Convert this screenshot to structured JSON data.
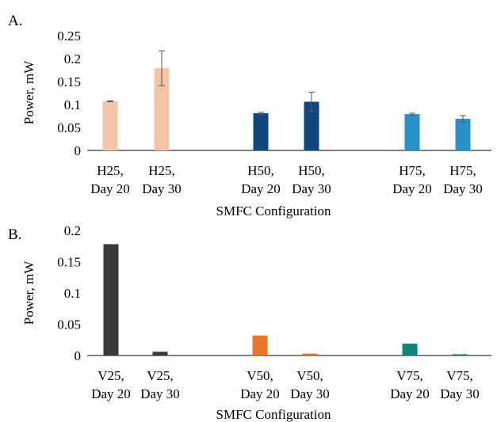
{
  "chart_data": [
    {
      "type": "bar",
      "panel_label": "A.",
      "categories": [
        [
          "H25,",
          "Day 20"
        ],
        [
          "H25,",
          "Day 30"
        ],
        [
          "H50,",
          "Day 20"
        ],
        [
          "H50,",
          "Day 30"
        ],
        [
          "H75,",
          "Day 20"
        ],
        [
          "H75,",
          "Day 30"
        ]
      ],
      "values": [
        0.107,
        0.179,
        0.081,
        0.106,
        0.079,
        0.069
      ],
      "errors": [
        0.001,
        0.038,
        0.002,
        0.021,
        0.002,
        0.007
      ],
      "colors": [
        "#f2c4a8",
        "#f2c4a8",
        "#12467d",
        "#12467d",
        "#2a92c8",
        "#2a92c8"
      ],
      "xlabel": "SMFC Configuration",
      "ylabel": "Power, mW",
      "ylim": [
        0,
        0.25
      ],
      "yticks": [
        "0",
        "0.05",
        "0.1",
        "0.15",
        "0.2",
        "0.25"
      ],
      "grid": false
    },
    {
      "type": "bar",
      "panel_label": "B.",
      "categories": [
        [
          "V25,",
          "Day 20"
        ],
        [
          "V25,",
          "Day 30"
        ],
        [
          "V50,",
          "Day 20"
        ],
        [
          "V50,",
          "Day 30"
        ],
        [
          "V75,",
          "Day 20"
        ],
        [
          "V75,",
          "Day 30"
        ]
      ],
      "values": [
        0.178,
        0.006,
        0.032,
        0.003,
        0.019,
        0.002
      ],
      "colors": [
        "#3a3a3a",
        "#3a3a3a",
        "#e8752a",
        "#e8752a",
        "#118577",
        "#118577"
      ],
      "xlabel": "SMFC Configuration",
      "ylabel": "Power, mW",
      "ylim": [
        0,
        0.2
      ],
      "yticks": [
        "0",
        "0.05",
        "0.1",
        "0.15",
        "0.2"
      ],
      "grid": false
    }
  ]
}
